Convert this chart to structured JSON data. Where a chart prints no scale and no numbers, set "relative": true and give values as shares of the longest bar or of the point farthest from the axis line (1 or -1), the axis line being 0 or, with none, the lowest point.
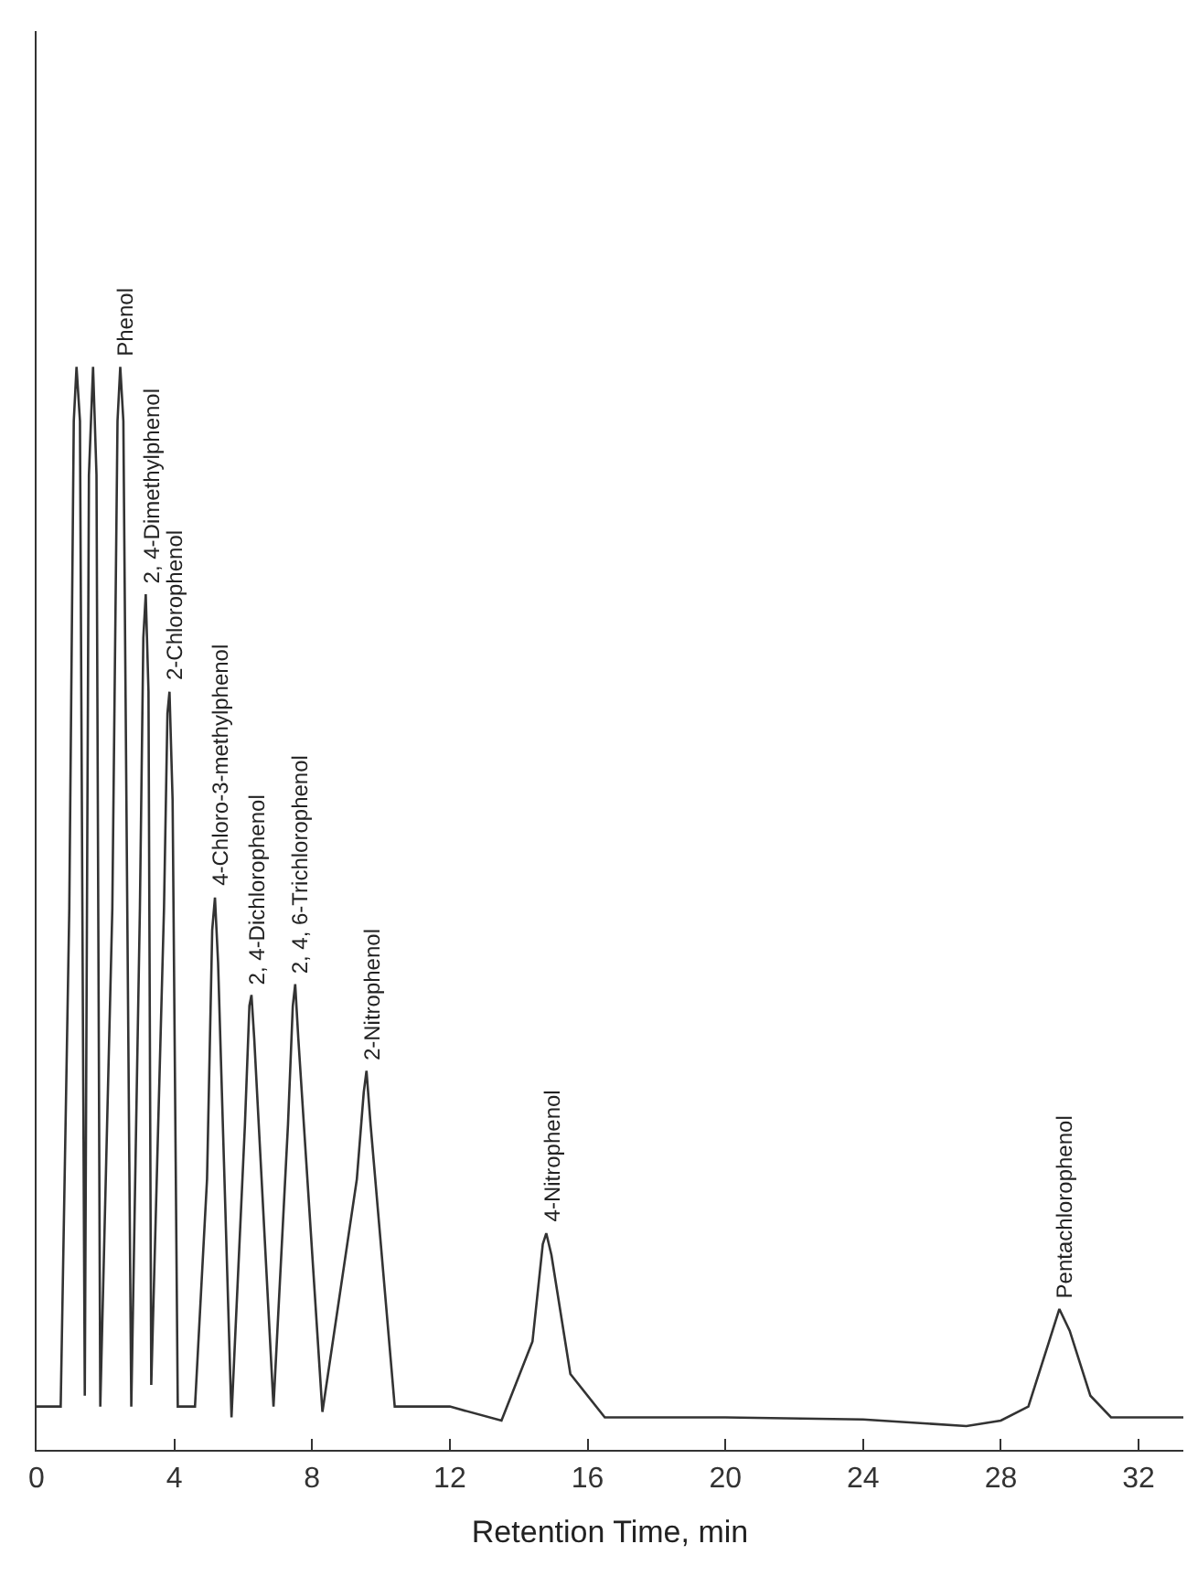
{
  "chart_data": {
    "type": "line",
    "relative": true,
    "xlabel": "Retention Time, min",
    "xlim": [
      0,
      33.3
    ],
    "xticks": [
      0,
      4,
      8,
      12,
      16,
      20,
      24,
      28,
      32
    ],
    "marker": "none",
    "line_style": "solid",
    "series": [
      {
        "color": "#333333",
        "x": [
          0,
          0.7,
          0.95,
          1.08,
          1.16,
          1.26,
          1.4,
          1.52,
          1.64,
          1.74,
          1.85,
          2.2,
          2.35,
          2.43,
          2.52,
          2.75,
          3.0,
          3.1,
          3.17,
          3.25,
          3.33,
          3.7,
          3.8,
          3.86,
          3.95,
          4.1,
          4.6,
          4.95,
          5.1,
          5.18,
          5.27,
          5.66,
          6.05,
          6.18,
          6.24,
          6.32,
          6.88,
          7.3,
          7.44,
          7.51,
          7.6,
          8.3,
          9.3,
          9.5,
          9.58,
          9.7,
          10.4,
          12,
          13.5,
          14.4,
          14.7,
          14.8,
          14.95,
          15.5,
          16.5,
          20,
          24,
          27,
          28,
          28.8,
          29.4,
          29.7,
          30.0,
          30.6,
          31.2,
          33.3
        ],
        "values": [
          0.04,
          0.04,
          0.5,
          0.95,
          1.0,
          0.95,
          0.05,
          0.9,
          1.0,
          0.9,
          0.04,
          0.5,
          0.95,
          1.0,
          0.95,
          0.04,
          0.5,
          0.75,
          0.79,
          0.7,
          0.06,
          0.5,
          0.68,
          0.7,
          0.6,
          0.04,
          0.04,
          0.25,
          0.48,
          0.51,
          0.45,
          0.03,
          0.3,
          0.41,
          0.42,
          0.38,
          0.04,
          0.3,
          0.41,
          0.43,
          0.38,
          0.035,
          0.25,
          0.33,
          0.35,
          0.3,
          0.04,
          0.04,
          0.027,
          0.1,
          0.19,
          0.2,
          0.18,
          0.07,
          0.03,
          0.03,
          0.028,
          0.022,
          0.027,
          0.04,
          0.1,
          0.13,
          0.11,
          0.05,
          0.03,
          0.03
        ]
      }
    ],
    "annotations": [
      {
        "text": "Phenol",
        "x": 2.43,
        "y": 1.0
      },
      {
        "text": "2, 4-Dimethylphenol",
        "x": 3.17,
        "y": 0.79
      },
      {
        "text": "2-Chlorophenol",
        "x": 3.86,
        "y": 0.7
      },
      {
        "text": "4-Chloro-3-methylphenol",
        "x": 5.18,
        "y": 0.51
      },
      {
        "text": "2, 4-Dichlorophenol",
        "x": 6.24,
        "y": 0.42
      },
      {
        "text": "2, 4, 6-Trichlorophenol",
        "x": 7.51,
        "y": 0.43
      },
      {
        "text": "2-Nitrophenol",
        "x": 9.58,
        "y": 0.35
      },
      {
        "text": "4-Nitrophenol",
        "x": 14.8,
        "y": 0.2
      },
      {
        "text": "Pentachlorophenol",
        "x": 29.7,
        "y": 0.13
      }
    ]
  }
}
